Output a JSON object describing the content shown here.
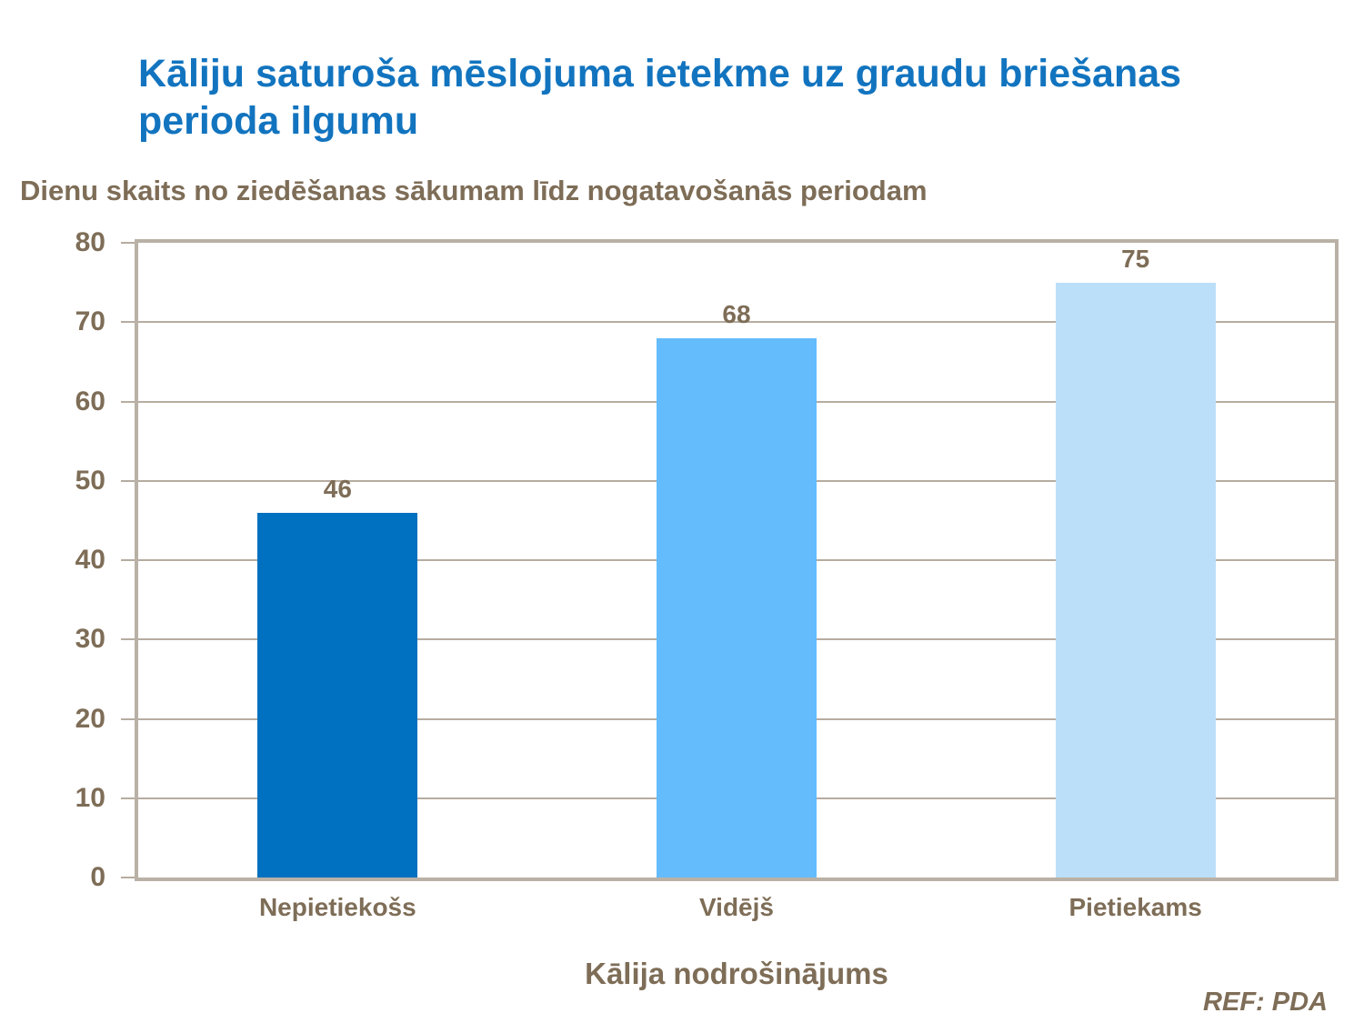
{
  "reference": "REF: PDA",
  "colors": {
    "title_blue": "#1274BF",
    "text_brown": "#7E6D57",
    "plot_border": "#BAB1A6",
    "gridline": "#B6ACA0",
    "bar_colors": [
      "#0070C0",
      "#64BCFC",
      "#BBDFF8"
    ]
  },
  "chart_data": {
    "type": "bar",
    "title": "Kāliju saturoša mēslojuma ietekme uz graudu briešanas perioda ilgumu",
    "ylabel": "Dienu skaits no ziedēšanas sākumam līdz nogatavošanās periodam",
    "xlabel": "Kālija nodrošinājums",
    "categories": [
      "Nepietiekošs",
      "Vidējš",
      "Pietiekams"
    ],
    "values": [
      46,
      68,
      75
    ],
    "bar_colors": [
      "#0070C0",
      "#64BCFC",
      "#BBDFF8"
    ],
    "ylim": [
      0,
      80
    ],
    "ytick_step": 10,
    "grid": true,
    "legend": false
  }
}
